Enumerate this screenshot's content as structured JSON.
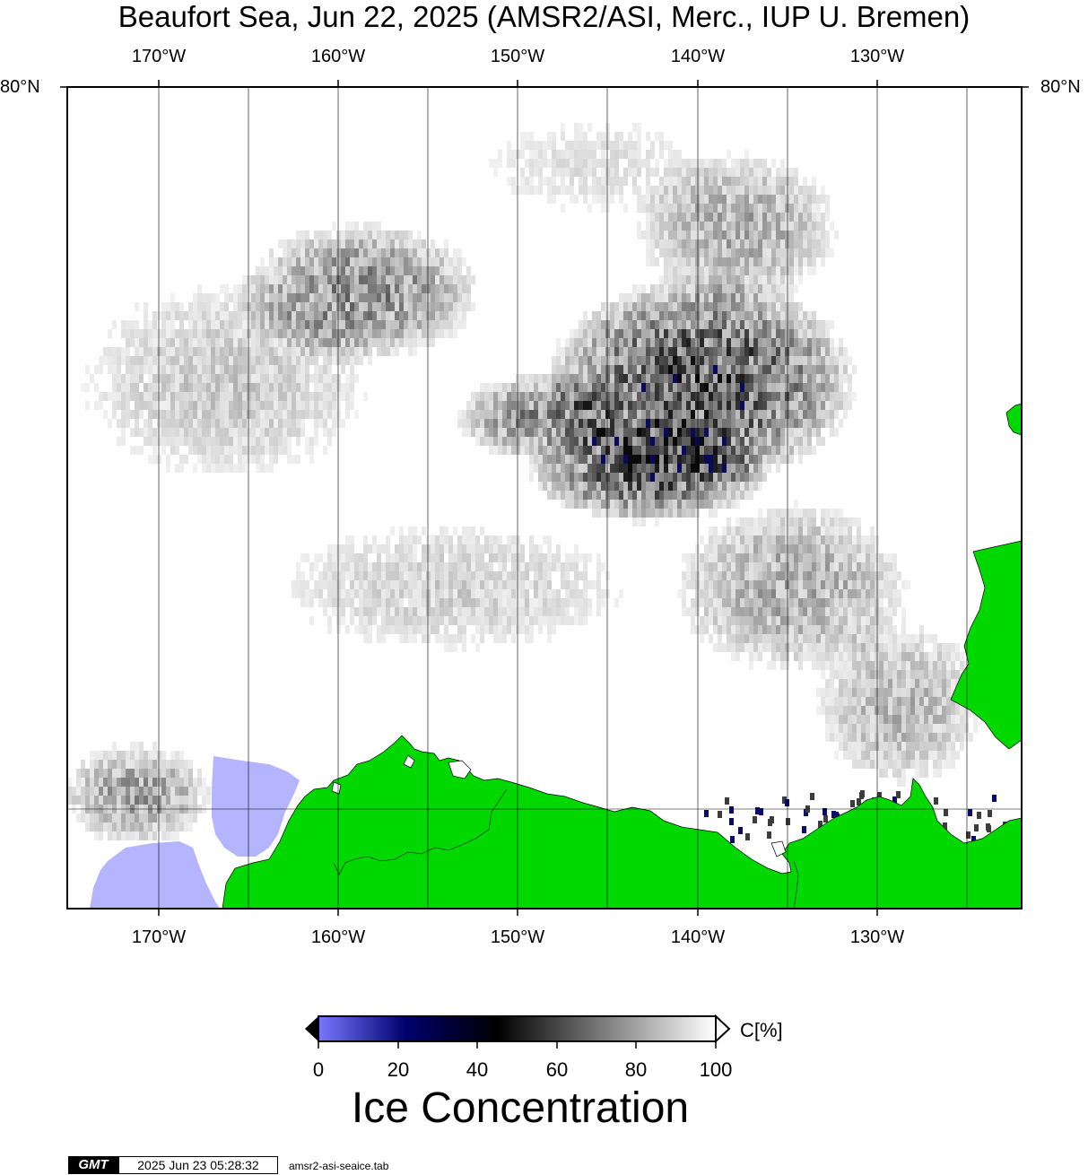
{
  "title": "Beaufort Sea, Jun 22, 2025 (AMSR2/ASI, Merc., IUP U. Bremen)",
  "map": {
    "lon_labels": [
      "170°W",
      "160°W",
      "150°W",
      "140°W",
      "130°W"
    ],
    "lon_values": [
      -170,
      -160,
      -150,
      -140,
      -130
    ],
    "lat_label": "80°N",
    "lat_value": 80,
    "lon_range": [
      -175,
      -122
    ],
    "colors": {
      "land": "#00d800",
      "no_data": "#b4b4ff",
      "frame": "#000000",
      "grid": "#000000"
    }
  },
  "colorbar": {
    "ticks": [
      "0",
      "20",
      "40",
      "60",
      "80",
      "100"
    ],
    "units": "C[%]",
    "label": "Ice Concentration",
    "stops": [
      {
        "value": 0,
        "color": "#7878ff"
      },
      {
        "value": 22,
        "color": "#00006e"
      },
      {
        "value": 45,
        "color": "#000000"
      },
      {
        "value": 100,
        "color": "#ffffff"
      }
    ]
  },
  "footer": {
    "logo": "GMT",
    "timestamp": "2025 Jun 23 05:28:32",
    "file": "amsr2-asi-seaice.tab"
  }
}
